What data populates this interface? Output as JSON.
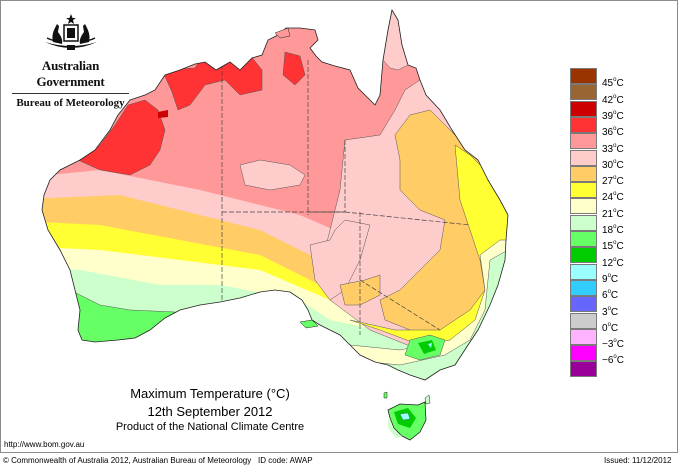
{
  "header": {
    "government": "Australian Government",
    "bureau": "Bureau of Meteorology"
  },
  "title": {
    "main": "Maximum Temperature (°C)",
    "date": "12th September 2012",
    "product": "Product of the National Climate Centre"
  },
  "footer": {
    "url": "http://www.bom.gov.au",
    "copyright": "© Commonwealth of Australia 2012, Australian Bureau of Meteorology",
    "id_code": "ID code: AWAP",
    "issued": "Issued: 11/12/2012"
  },
  "legend": {
    "unit": "°C",
    "bins": [
      {
        "color": "#993300",
        "label": "45"
      },
      {
        "color": "#996633",
        "label": "42"
      },
      {
        "color": "#cc0000",
        "label": "39"
      },
      {
        "color": "#ff3333",
        "label": "36"
      },
      {
        "color": "#ff9999",
        "label": "33"
      },
      {
        "color": "#ffcccc",
        "label": "30"
      },
      {
        "color": "#ffcc66",
        "label": "27"
      },
      {
        "color": "#ffff33",
        "label": "24"
      },
      {
        "color": "#ffffcc",
        "label": "21"
      },
      {
        "color": "#ccffcc",
        "label": "18"
      },
      {
        "color": "#66ff66",
        "label": "15"
      },
      {
        "color": "#00cc00",
        "label": "12"
      },
      {
        "color": "#99ffff",
        "label": "9"
      },
      {
        "color": "#33ccff",
        "label": "6"
      },
      {
        "color": "#6666ff",
        "label": "3"
      },
      {
        "color": "#cccccc",
        "label": "0"
      },
      {
        "color": "#ffb3ff",
        "label": "-3"
      },
      {
        "color": "#ff00ff",
        "label": "-6"
      },
      {
        "color": "#990099",
        "label": ""
      }
    ]
  },
  "map": {
    "region": "Australia",
    "variable": "Maximum Temperature",
    "colors": {
      "c36": "#ff3333",
      "c33": "#ff9999",
      "c30": "#ffcccc",
      "c27": "#ffcc66",
      "c24": "#ffff33",
      "c21": "#ffffcc",
      "c18": "#ccffcc",
      "c15": "#66ff66",
      "c12": "#00cc00",
      "c9": "#99ffff"
    }
  }
}
